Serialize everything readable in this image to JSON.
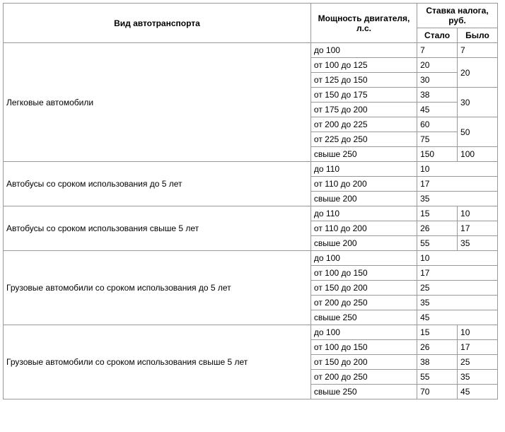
{
  "headers": {
    "type": "Вид автотранспорта",
    "power": "Мощность двигателя, л.с.",
    "rate": "Ставка налога, руб.",
    "now": "Стало",
    "was": "Было"
  },
  "groups": [
    {
      "name": "Легковые автомобили",
      "rows": [
        {
          "power": "до 100",
          "now": "7",
          "was": "7",
          "merged": false
        },
        {
          "power": "от 100 до 125",
          "now": "20",
          "was": "20",
          "merged": true,
          "span": 2
        },
        {
          "power": "от 125 до 150",
          "now": "30"
        },
        {
          "power": "от 150 до 175",
          "now": "38",
          "was": "30",
          "merged": true,
          "span": 2
        },
        {
          "power": "от 175 до 200",
          "now": "45"
        },
        {
          "power": "от 200 до 225",
          "now": "60",
          "was": "50",
          "merged": true,
          "span": 2
        },
        {
          "power": "от 225 до 250",
          "now": "75"
        },
        {
          "power": "свыше 250",
          "now": "150",
          "was": "100",
          "merged": false
        }
      ]
    },
    {
      "name": "Автобусы со сроком использования до 5 лет",
      "rows": [
        {
          "power": "до 110",
          "now": "10",
          "colspan2": true
        },
        {
          "power": "от 110 до 200",
          "now": "17",
          "colspan2": true
        },
        {
          "power": "свыше 200",
          "now": "35",
          "colspan2": true
        }
      ]
    },
    {
      "name": "Автобусы со сроком использования свыше 5 лет",
      "rows": [
        {
          "power": "до 110",
          "now": "15",
          "was": "10"
        },
        {
          "power": "от 110 до 200",
          "now": "26",
          "was": "17"
        },
        {
          "power": "свыше 200",
          "now": "55",
          "was": "35"
        }
      ]
    },
    {
      "name": "Грузовые автомобили со сроком использования до 5 лет",
      "rows": [
        {
          "power": "до 100",
          "now": "10",
          "colspan2": true
        },
        {
          "power": "от 100 до 150",
          "now": "17",
          "colspan2": true
        },
        {
          "power": "от 150 до 200",
          "now": "25",
          "colspan2": true
        },
        {
          "power": "от 200 до 250",
          "now": "35",
          "colspan2": true
        },
        {
          "power": "свыше 250",
          "now": "45",
          "colspan2": true
        }
      ]
    },
    {
      "name": "Грузовые автомобили со сроком использования свыше 5 лет",
      "rows": [
        {
          "power": "до 100",
          "now": "15",
          "was": "10"
        },
        {
          "power": "от 100 до 150",
          "now": "26",
          "was": "17"
        },
        {
          "power": "от 150 до 200",
          "now": "38",
          "was": "25"
        },
        {
          "power": "от 200 до 250",
          "now": "55",
          "was": "35"
        },
        {
          "power": "свыше 250",
          "now": "70",
          "was": "45"
        }
      ]
    }
  ]
}
